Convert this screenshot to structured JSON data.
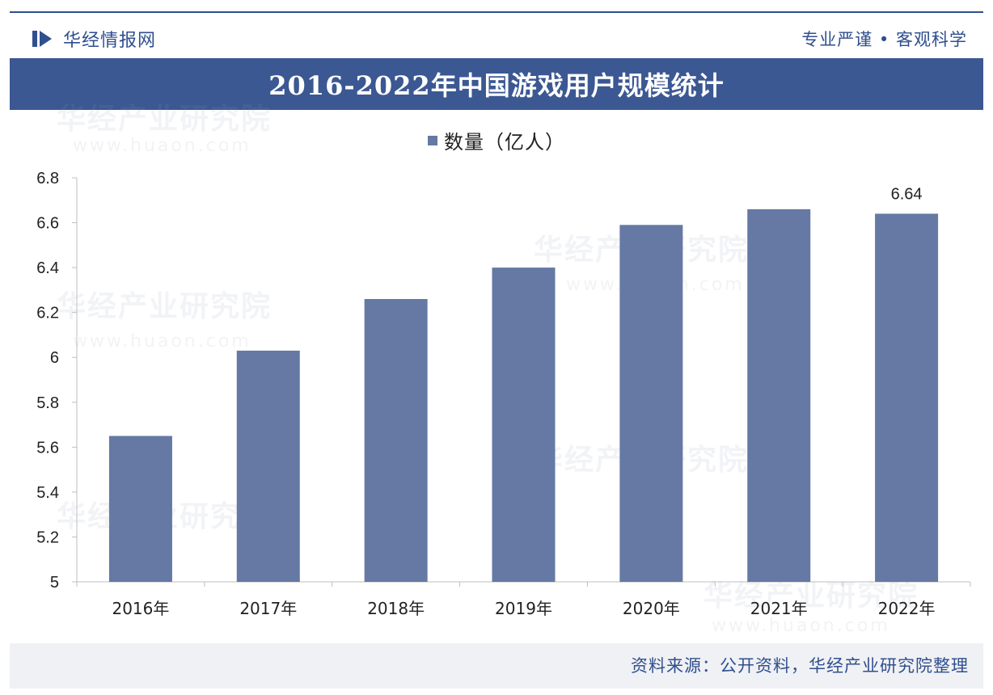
{
  "header": {
    "brand_name": "华经情报网",
    "slogan": "专业严谨 • 客观科学"
  },
  "title": "2016-2022年中国游戏用户规模统计",
  "watermark": {
    "text": "华经产业研究院",
    "url": "www.huaon.com"
  },
  "footer": {
    "source": "资料来源：公开资料，华经产业研究院整理"
  },
  "colors": {
    "bar": "#6579a4",
    "header_band": "#3b5893",
    "brand": "#2f4f8f"
  },
  "chart_data": {
    "type": "bar",
    "title": "2016-2022年中国游戏用户规模统计",
    "categories": [
      "2016年",
      "2017年",
      "2018年",
      "2019年",
      "2020年",
      "2021年",
      "2022年"
    ],
    "series": [
      {
        "name": "数量（亿人）",
        "values": [
          5.65,
          6.03,
          6.26,
          6.4,
          6.59,
          6.66,
          6.64
        ]
      }
    ],
    "data_labels": [
      {
        "category": "2022年",
        "text": "6.64"
      }
    ],
    "ylim": [
      5,
      6.8
    ],
    "yticks": [
      "5",
      "5.2",
      "5.4",
      "5.6",
      "5.8",
      "6",
      "6.2",
      "6.4",
      "6.6",
      "6.8"
    ],
    "xlabel": "",
    "ylabel": "",
    "legend": "top-center",
    "grid": false
  }
}
